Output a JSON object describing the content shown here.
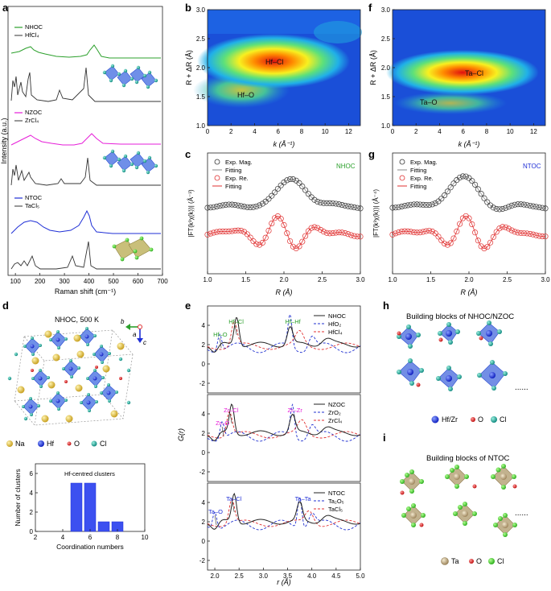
{
  "panels": {
    "a": {
      "letter": "a",
      "ylabel": "Intensity (a.u.)",
      "xlabel": "Raman shift (cm⁻¹)",
      "xticks": [
        "100",
        "200",
        "300",
        "400",
        "500",
        "600",
        "700"
      ],
      "legend1": [
        "NHOC",
        "HfCl₄"
      ],
      "legend2": [
        "NZOC",
        "ZrCl₄"
      ],
      "legend3": [
        "NTOC",
        "TaCl₅"
      ],
      "colors": {
        "nhoc": "#2ca02c",
        "nzoc": "#e61ed8",
        "ntoc": "#1f2fd6",
        "ref": "#333333"
      }
    },
    "b": {
      "letter": "b",
      "ylabel": "R + ΔR (Å)",
      "xlabel": "k (Å⁻¹)",
      "xticks": [
        "0",
        "2",
        "4",
        "6",
        "8",
        "10",
        "12"
      ],
      "yticks": [
        "1.0",
        "1.5",
        "2.0",
        "2.5",
        "3.0"
      ],
      "label_main": "Hf–Cl",
      "label_minor": "Hf–O"
    },
    "f": {
      "letter": "f",
      "ylabel": "R + ΔR (Å)",
      "xlabel": "k (Å⁻¹)",
      "xticks": [
        "0",
        "2",
        "4",
        "6",
        "8",
        "10",
        "12"
      ],
      "yticks": [
        "1.0",
        "1.5",
        "2.0",
        "2.5",
        "3.0"
      ],
      "label_main": "Ta–Cl",
      "label_minor": "Ta–O"
    },
    "c": {
      "letter": "c",
      "ylabel": "|FT(k³χ(k))| (Å⁻³)",
      "xlabel": "R (Å)",
      "xticks": [
        "1.0",
        "1.5",
        "2.0",
        "2.5",
        "3.0"
      ],
      "legend": [
        "Exp. Mag.",
        "Fitting",
        "Exp. Re.",
        "Fitting"
      ],
      "tag": "NHOC"
    },
    "g": {
      "letter": "g",
      "ylabel": "|FT(k³χ(k))| (Å⁻⁴)",
      "xlabel": "R (Å)",
      "xticks": [
        "1.0",
        "1.5",
        "2.0",
        "2.5",
        "3.0"
      ],
      "legend": [
        "Exp. Mag.",
        "Fitting",
        "Exp. Re.",
        "Fitting"
      ],
      "tag": "NTOC"
    },
    "d": {
      "letter": "d",
      "title": "NHOC, 500 K",
      "axes": [
        "b",
        "a",
        "c"
      ],
      "legend": [
        "Na",
        "Hf",
        "O",
        "Cl"
      ]
    },
    "e": {
      "letter": "e",
      "ylabel": "G(r)",
      "xlabel": "r (Å)",
      "xticks": [
        "2.0",
        "2.5",
        "3.0",
        "3.5",
        "4.0",
        "4.5",
        "5.0"
      ],
      "yticks": [
        "4",
        "2",
        "0",
        "-2"
      ],
      "sub1": {
        "legend": [
          "NHOC",
          "HfO₂",
          "HfCl₄"
        ],
        "labels": [
          "Hf–O",
          "Hf–Cl",
          "Hf–Hf"
        ],
        "color": "#2ca02c"
      },
      "sub2": {
        "legend": [
          "NZOC",
          "ZrO₂",
          "ZrCl₄"
        ],
        "labels": [
          "Zr–O",
          "Zr–Cl",
          "Zr–Zr"
        ],
        "color": "#e61ed8"
      },
      "sub3": {
        "legend": [
          "NTOC",
          "Ta₂O₅",
          "TaCl₅"
        ],
        "labels": [
          "Ta–O",
          "Ta–Cl",
          "Ta–Ta"
        ],
        "color": "#1f2fd6"
      }
    },
    "h": {
      "letter": "h",
      "title": "Building blocks of NHOC/NZOC",
      "legend": [
        "Hf/Zr",
        "O",
        "Cl"
      ],
      "ellipsis": "......"
    },
    "i": {
      "letter": "i",
      "title": "Building blocks of NTOC",
      "legend": [
        "Ta",
        "O",
        "Cl"
      ],
      "ellipsis": "......"
    }
  },
  "chart_data": [
    {
      "type": "bar",
      "title": "Hf-centred clusters",
      "xlabel": "Coordination numbers",
      "ylabel": "Number of clusters",
      "categories": [
        "5",
        "6",
        "7",
        "8"
      ],
      "values": [
        5,
        5,
        1,
        1
      ],
      "xlim": [
        2,
        10
      ],
      "ylim": [
        0,
        7
      ],
      "xticks": [
        "2",
        "4",
        "6",
        "8",
        "10"
      ],
      "yticks": [
        "0",
        "2",
        "4",
        "6"
      ]
    }
  ]
}
